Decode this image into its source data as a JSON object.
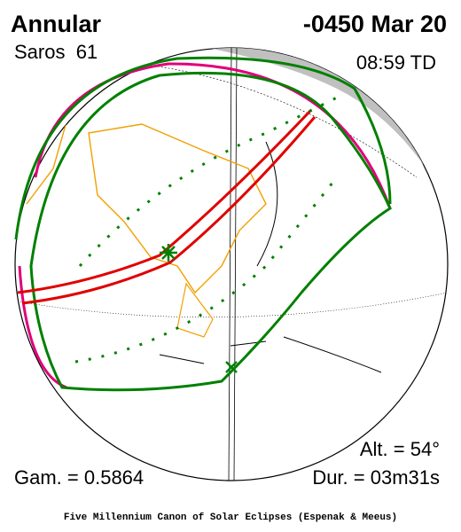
{
  "header": {
    "eclipse_type": "Annular",
    "date": "-0450 Mar 20",
    "saros": "Saros  61",
    "time": "08:59 TD"
  },
  "stats": {
    "altitude": "Alt. = 54°",
    "gamma": "Gam. = 0.5864",
    "duration": "Dur. = 03m31s"
  },
  "footer": "Five Millennium Canon of Solar Eclipses (Espenak & Meeus)"
}
